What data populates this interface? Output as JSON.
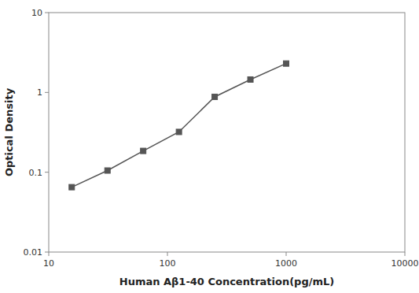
{
  "chart_data": {
    "type": "line",
    "xlabel": "Human Aβ1-40 Concentration(pg/mL)",
    "ylabel": "Optical Density",
    "x": [
      15.625,
      31.25,
      62.5,
      125,
      250,
      500,
      1000
    ],
    "values": [
      0.065,
      0.105,
      0.185,
      0.32,
      0.88,
      1.45,
      2.3
    ],
    "color": "#555555",
    "marker": "square",
    "log": true,
    "xlim": [
      10,
      10000
    ],
    "ylim": [
      0.01,
      10
    ],
    "xticks": [
      10,
      100,
      1000,
      10000
    ],
    "yticks": [
      0.01,
      0.1,
      1,
      10
    ],
    "grid": false
  }
}
